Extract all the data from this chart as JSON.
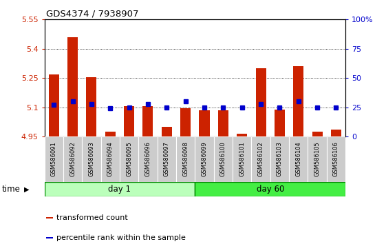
{
  "title": "GDS4374 / 7938907",
  "samples": [
    "GSM586091",
    "GSM586092",
    "GSM586093",
    "GSM586094",
    "GSM586095",
    "GSM586096",
    "GSM586097",
    "GSM586098",
    "GSM586099",
    "GSM586100",
    "GSM586101",
    "GSM586102",
    "GSM586103",
    "GSM586104",
    "GSM586105",
    "GSM586106"
  ],
  "transformed_count": [
    5.27,
    5.46,
    5.255,
    4.975,
    5.105,
    5.105,
    5.0,
    5.095,
    5.085,
    5.085,
    4.965,
    5.3,
    5.09,
    5.31,
    4.975,
    4.985
  ],
  "percentile_rank": [
    27,
    30,
    28,
    24,
    25,
    28,
    25,
    30,
    25,
    25,
    25,
    28,
    25,
    30,
    25,
    25
  ],
  "day1_samples": 8,
  "day60_samples": 8,
  "ylim_left": [
    4.95,
    5.55
  ],
  "ylim_right": [
    0,
    100
  ],
  "yticks_left": [
    4.95,
    5.1,
    5.25,
    5.4,
    5.55
  ],
  "yticks_right": [
    0,
    25,
    50,
    75,
    100
  ],
  "ytick_labels_left": [
    "4.95",
    "5.1",
    "5.25",
    "5.4",
    "5.55"
  ],
  "ytick_labels_right": [
    "0",
    "25",
    "50",
    "75",
    "100%"
  ],
  "bar_color": "#cc2200",
  "dot_color": "#0000cc",
  "label_bg_color": "#cccccc",
  "day1_bg": "#bbffbb",
  "day60_bg": "#44ee44",
  "day_border_color": "#008800",
  "time_label": "time",
  "day1_label": "day 1",
  "day60_label": "day 60",
  "legend_bar": "transformed count",
  "legend_dot": "percentile rank within the sample",
  "bar_width": 0.55,
  "dot_size": 40,
  "fig_width": 5.61,
  "fig_height": 3.54,
  "dpi": 100
}
